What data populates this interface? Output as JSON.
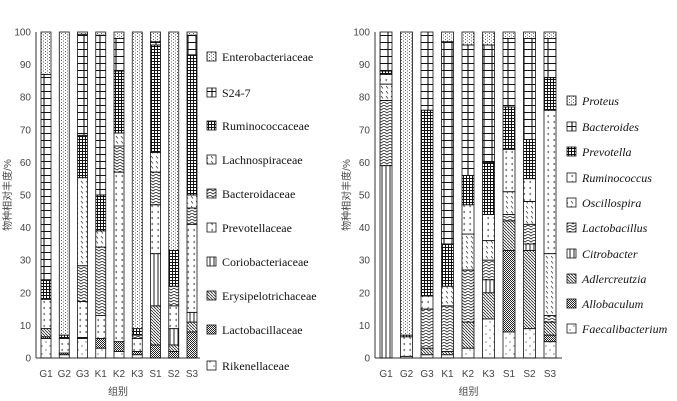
{
  "chart_data": [
    {
      "type": "bar",
      "stacked": true,
      "title": "",
      "xlabel": "组别",
      "ylabel": "物种相对丰度/%",
      "ylim": [
        0,
        100
      ],
      "yticks": [
        0,
        10,
        20,
        30,
        40,
        50,
        60,
        70,
        80,
        90,
        100
      ],
      "categories": [
        "G1",
        "G2",
        "G3",
        "K1",
        "K2",
        "K3",
        "S1",
        "S2",
        "S3"
      ],
      "legend_position": "right",
      "legend_italic": false,
      "series": [
        {
          "name": "Rikenellaceae",
          "pattern": "dots",
          "values": [
            6,
            1,
            6,
            3,
            2,
            1,
            0,
            0,
            0
          ]
        },
        {
          "name": "Lactobacillaceae",
          "pattern": "checker",
          "values": [
            0.5,
            0.5,
            0.3,
            3,
            3,
            1,
            4,
            2,
            8
          ]
        },
        {
          "name": "Erysipelotrichaceae",
          "pattern": "diag",
          "values": [
            2.5,
            0,
            0,
            0,
            0,
            0,
            12,
            2,
            3
          ]
        },
        {
          "name": "Coriobacteriaceae",
          "pattern": "vlines",
          "values": [
            0,
            0,
            0,
            0,
            0,
            0,
            16,
            5,
            3
          ]
        },
        {
          "name": "Prevotellaceae",
          "pattern": "chev",
          "values": [
            9,
            4.5,
            11,
            7,
            52,
            4,
            15,
            7,
            27
          ]
        },
        {
          "name": "Bacteroidaceae",
          "pattern": "zigzag",
          "values": [
            0,
            0,
            11,
            21,
            8,
            1,
            10,
            6,
            5
          ]
        },
        {
          "name": "Lachnospiraceae",
          "pattern": "dash",
          "values": [
            0,
            0,
            27,
            5,
            4,
            0,
            6,
            0,
            4
          ]
        },
        {
          "name": "Ruminococcaceae",
          "pattern": "grid",
          "values": [
            6,
            1,
            13,
            11,
            19,
            2,
            33,
            11,
            43
          ]
        },
        {
          "name": "S24-7",
          "pattern": "bricks",
          "values": [
            63,
            0,
            31,
            49,
            10,
            0,
            1,
            0,
            6
          ]
        },
        {
          "name": "Enterobacteriaceae",
          "pattern": "dotv",
          "values": [
            13,
            93,
            0.7,
            1,
            2,
            91,
            3,
            67,
            1
          ]
        }
      ]
    },
    {
      "type": "bar",
      "stacked": true,
      "title": "",
      "xlabel": "组别",
      "ylabel": "物种相对丰度/%",
      "ylim": [
        0,
        100
      ],
      "yticks": [
        0,
        10,
        20,
        30,
        40,
        50,
        60,
        70,
        80,
        90,
        100
      ],
      "categories": [
        "G1",
        "G2",
        "G3",
        "K1",
        "K2",
        "K3",
        "S1",
        "S2",
        "S3"
      ],
      "legend_position": "right",
      "legend_italic": true,
      "series": [
        {
          "name": "Faecalibacterium",
          "pattern": "dots",
          "values": [
            0,
            0.5,
            1,
            1,
            3,
            12,
            8,
            9,
            5
          ]
        },
        {
          "name": "Allobaculum",
          "pattern": "checker",
          "values": [
            0,
            0,
            0,
            0,
            0,
            0,
            25,
            0,
            2
          ]
        },
        {
          "name": "Adlercreutzia",
          "pattern": "diag",
          "values": [
            0,
            0,
            2,
            1,
            8,
            8,
            9,
            24,
            4
          ]
        },
        {
          "name": "Citrobacter",
          "pattern": "vlines",
          "values": [
            59,
            0,
            0,
            0,
            0,
            4,
            0,
            2,
            0
          ]
        },
        {
          "name": "Lactobacillus",
          "pattern": "zigzag",
          "values": [
            20,
            0,
            12,
            14,
            16,
            6,
            2,
            6,
            2
          ]
        },
        {
          "name": "Oscillospira",
          "pattern": "dash",
          "values": [
            5,
            0,
            0,
            6,
            11,
            6,
            7,
            7,
            19
          ]
        },
        {
          "name": "Ruminococcus",
          "pattern": "chev",
          "values": [
            3,
            6,
            4,
            0,
            9,
            8,
            13,
            7,
            44
          ]
        },
        {
          "name": "Prevotella",
          "pattern": "grid",
          "values": [
            1,
            0.5,
            57,
            13,
            9,
            16,
            13,
            12,
            10
          ]
        },
        {
          "name": "Bacteroides",
          "pattern": "bricks",
          "values": [
            12,
            0,
            24,
            62,
            40,
            36,
            21,
            31,
            12
          ]
        },
        {
          "name": "Proteus",
          "pattern": "dotv",
          "values": [
            0,
            93,
            0,
            3,
            4,
            4,
            2,
            2,
            2
          ]
        }
      ]
    }
  ]
}
